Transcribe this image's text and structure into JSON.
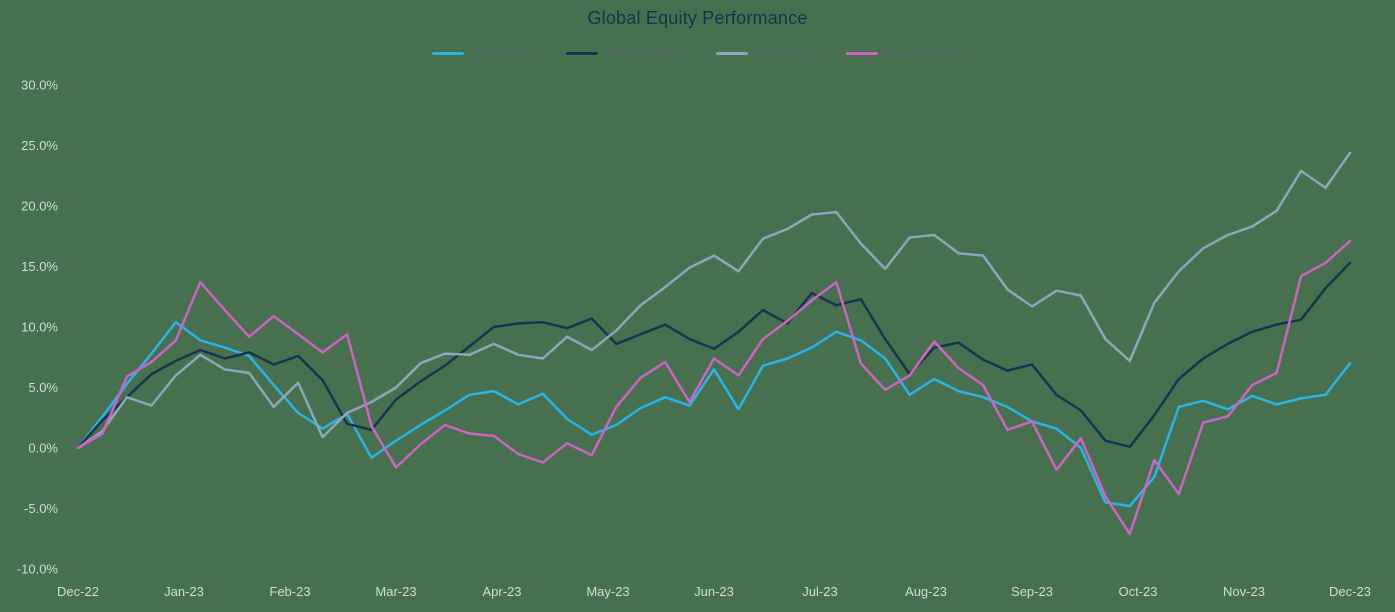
{
  "title": "Global Equity Performance",
  "colors": {
    "background": "#47714e",
    "title_text": "#14324c",
    "legend_text": "#55626b",
    "axis_text": "#d6dbd6"
  },
  "chart_data": {
    "type": "line",
    "title": "Global Equity Performance",
    "xlabel": "",
    "ylabel": "",
    "ylim": [
      -10,
      30
    ],
    "grid": false,
    "legend_position": "top-center",
    "x_unit": "weekly cumulative return (%), Dec-22 through Dec-23",
    "x_ticks": [
      "Dec-22",
      "Jan-23",
      "Feb-23",
      "Mar-23",
      "Apr-23",
      "May-23",
      "Jun-23",
      "Jul-23",
      "Aug-23",
      "Sep-23",
      "Oct-23",
      "Nov-23",
      "Dec-23"
    ],
    "y_ticks": {
      "values": [
        30,
        25,
        20,
        15,
        10,
        5,
        0,
        -5,
        -10
      ],
      "labels": [
        "30.0%",
        "25.0%",
        "20.0%",
        "15.0%",
        "10.0%",
        "5.0%",
        "0.0%",
        "-5.0%",
        "-10.0%"
      ]
    },
    "series": [
      {
        "name": "MSCI EM",
        "color": "#29b5e8",
        "values": [
          0,
          2.6,
          5.3,
          7.8,
          10.4,
          8.9,
          8.3,
          7.6,
          5.2,
          2.9,
          1.6,
          2.8,
          -0.8,
          0.6,
          1.9,
          3.1,
          4.4,
          4.7,
          3.6,
          4.5,
          2.4,
          1.1,
          1.9,
          3.3,
          4.2,
          3.5,
          6.5,
          3.2,
          6.8,
          7.4,
          8.3,
          9.6,
          8.9,
          7.4,
          4.4,
          5.7,
          4.7,
          4.2,
          3.4,
          2.2,
          1.6,
          0.0,
          -4.5,
          -4.8,
          -2.4,
          3.4,
          3.9,
          3.2,
          4.3,
          3.6,
          4.1,
          4.4,
          7.0
        ]
      },
      {
        "name": "MSCI EAFE",
        "color": "#16344f",
        "values": [
          0,
          2.3,
          4.2,
          6.1,
          7.2,
          8.1,
          7.4,
          7.9,
          6.9,
          7.6,
          5.6,
          2.0,
          1.5,
          4.0,
          5.5,
          6.8,
          8.4,
          10.0,
          10.3,
          10.4,
          9.9,
          10.7,
          8.6,
          9.4,
          10.2,
          9.0,
          8.2,
          9.6,
          11.4,
          10.3,
          12.8,
          11.8,
          12.3,
          9.0,
          6.1,
          8.3,
          8.7,
          7.3,
          6.4,
          6.9,
          4.4,
          3.1,
          0.6,
          0.1,
          2.7,
          5.7,
          7.4,
          8.6,
          9.6,
          10.2,
          10.6,
          13.2,
          15.3
        ]
      },
      {
        "name": "S&P 500",
        "color": "#90a5ba",
        "values": [
          0,
          1.4,
          4.2,
          3.5,
          6.0,
          7.7,
          6.5,
          6.2,
          3.4,
          5.4,
          0.9,
          2.9,
          3.8,
          5.0,
          7.0,
          7.8,
          7.7,
          8.6,
          7.7,
          7.4,
          9.2,
          8.1,
          9.7,
          11.8,
          13.3,
          14.9,
          15.9,
          14.6,
          17.3,
          18.1,
          19.3,
          19.5,
          16.9,
          14.8,
          17.4,
          17.6,
          16.1,
          15.9,
          13.1,
          11.7,
          13.0,
          12.6,
          9.0,
          7.2,
          12.0,
          14.6,
          16.5,
          17.6,
          18.3,
          19.6,
          22.9,
          21.5,
          24.4
        ]
      },
      {
        "name": "Russell 2000",
        "color": "#ce64c5",
        "values": [
          0,
          1.2,
          5.9,
          7.1,
          8.9,
          13.7,
          11.4,
          9.2,
          10.9,
          9.4,
          7.9,
          9.4,
          1.8,
          -1.6,
          0.3,
          1.9,
          1.2,
          1.0,
          -0.5,
          -1.2,
          0.4,
          -0.6,
          3.4,
          5.8,
          7.1,
          3.8,
          7.4,
          6.0,
          9.0,
          10.5,
          12.2,
          13.7,
          7.0,
          4.8,
          6.0,
          8.8,
          6.6,
          5.2,
          1.5,
          2.2,
          -1.8,
          0.8,
          -4.0,
          -7.1,
          -1.0,
          -3.8,
          2.1,
          2.6,
          5.2,
          6.2,
          14.2,
          15.3,
          17.1
        ]
      }
    ]
  }
}
